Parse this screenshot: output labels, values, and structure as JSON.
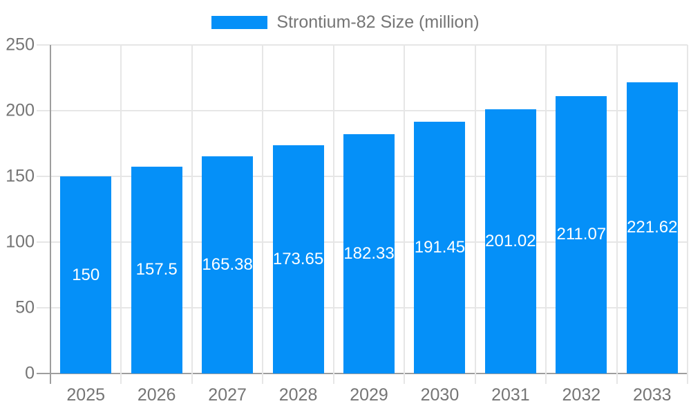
{
  "legend": {
    "label": "Strontium-82 Size (million)",
    "swatch_color": "#0590f8",
    "position": "top"
  },
  "chart_data": {
    "type": "bar",
    "categories": [
      "2025",
      "2026",
      "2027",
      "2028",
      "2029",
      "2030",
      "2031",
      "2032",
      "2033"
    ],
    "values": [
      150,
      157.5,
      165.38,
      173.65,
      182.33,
      191.45,
      201.02,
      211.07,
      221.62
    ],
    "series_name": "Strontium-82 Size (million)",
    "xlabel": "",
    "ylabel": "",
    "ylim": [
      0,
      250
    ],
    "yticks": [
      0,
      50,
      100,
      150,
      200,
      250
    ],
    "grid": true,
    "legend_position": "top",
    "value_labels": "inside-center",
    "bar_color": "#0590f8",
    "value_label_color": "#ffffff",
    "axis_text_color": "#757575",
    "gridline_color": "#e6e6e6",
    "axis_line_color": "#9e9e9e"
  }
}
